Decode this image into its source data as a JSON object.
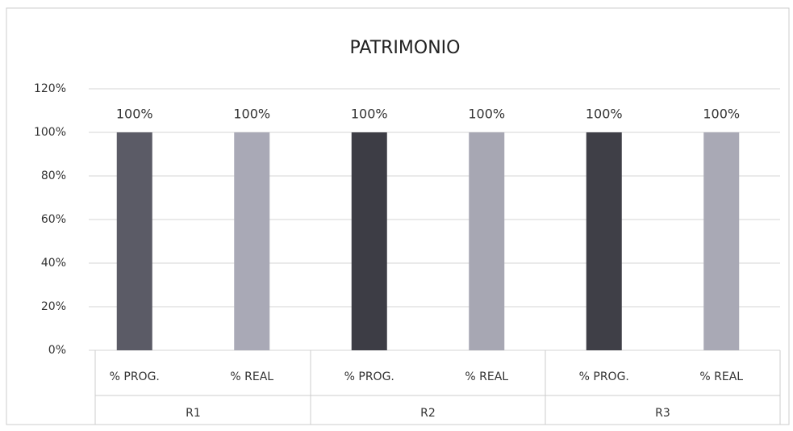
{
  "chart_data": {
    "type": "bar",
    "title": "PATRIMONIO",
    "categories": [
      "% PROG.",
      "% REAL",
      "% PROG.",
      "% REAL",
      "% PROG.",
      "% REAL"
    ],
    "groups": [
      "R1",
      "R2",
      "R3"
    ],
    "values": [
      100,
      100,
      100,
      100,
      100,
      100
    ],
    "value_labels": [
      "100%",
      "100%",
      "100%",
      "100%",
      "100%",
      "100%"
    ],
    "colors": [
      "#5b5b66",
      "#a9a9b6",
      "#3d3d45",
      "#a7a7b3",
      "#3f3f47",
      "#a9a9b5"
    ],
    "ylim": [
      0,
      120
    ],
    "yticks": [
      {
        "value": 0,
        "label": "0%"
      },
      {
        "value": 20,
        "label": "20%"
      },
      {
        "value": 40,
        "label": "40%"
      },
      {
        "value": 60,
        "label": "60%"
      },
      {
        "value": 80,
        "label": "80%"
      },
      {
        "value": 100,
        "label": "100%"
      },
      {
        "value": 120,
        "label": "120%"
      }
    ],
    "grid": true
  }
}
